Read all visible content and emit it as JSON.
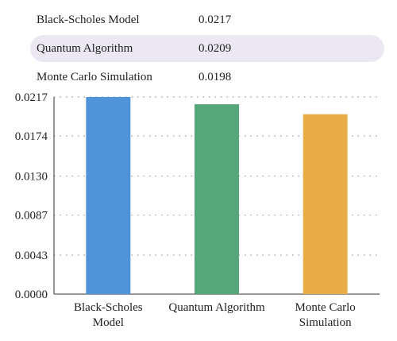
{
  "table": {
    "rows": [
      {
        "name": "Black-Scholes Model",
        "value": "0.0217",
        "highlighted": false
      },
      {
        "name": "Quantum Algorithm",
        "value": "0.0209",
        "highlighted": true
      },
      {
        "name": "Monte Carlo Simulation",
        "value": "0.0198",
        "highlighted": false
      }
    ]
  },
  "chart_data": {
    "type": "bar",
    "categories": [
      [
        "Black-Scholes",
        "Model"
      ],
      [
        "Quantum Algorithm"
      ],
      [
        "Monte Carlo",
        "Simulation"
      ]
    ],
    "values": [
      0.0217,
      0.0209,
      0.0198
    ],
    "colors": [
      "#4f93d9",
      "#55a77a",
      "#e8ae45"
    ],
    "ylim": [
      0,
      0.0217
    ],
    "yticks": [
      "0.0000",
      "0.0043",
      "0.0087",
      "0.0130",
      "0.0174",
      "0.0217"
    ],
    "grid": true,
    "grid_style": "dotted",
    "title": "",
    "xlabel": "",
    "ylabel": ""
  }
}
